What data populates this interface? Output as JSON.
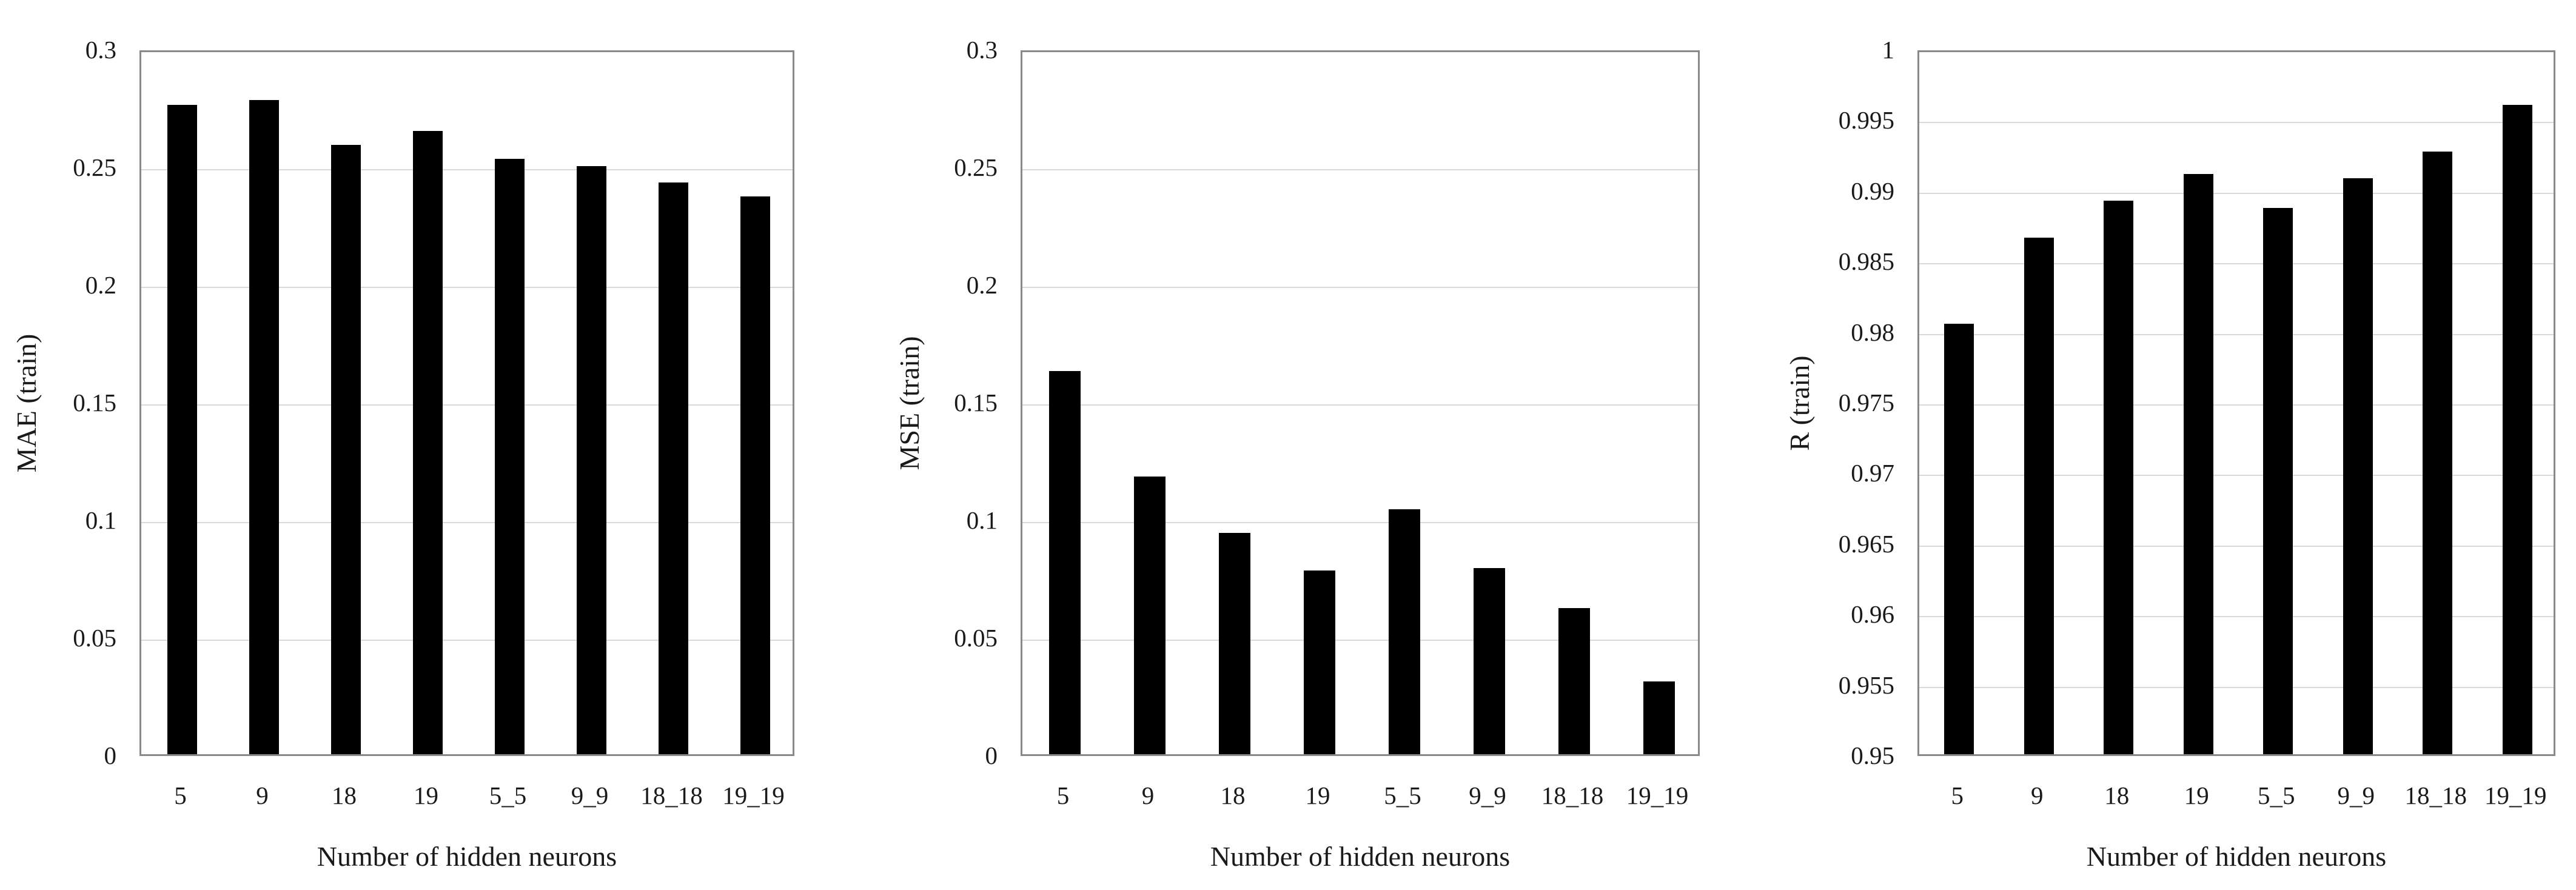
{
  "figure": {
    "background_color": "#ffffff",
    "bar_color": "#000000",
    "grid_color": "#d9d9d9",
    "axis_border_color": "#898989",
    "text_color": "#1a1a1a"
  },
  "chart_data": [
    {
      "type": "bar",
      "title": "",
      "xlabel": "Number of hidden neurons",
      "ylabel": "MAE (train)",
      "categories": [
        "5",
        "9",
        "18",
        "19",
        "5_5",
        "9_9",
        "18_18",
        "19_19"
      ],
      "values": [
        0.276,
        0.278,
        0.259,
        0.265,
        0.253,
        0.25,
        0.243,
        0.237
      ],
      "ylim": [
        0,
        0.3
      ],
      "ytick_step": 0.05,
      "ytick_labels": [
        "0",
        "0.05",
        "0.1",
        "0.15",
        "0.2",
        "0.25",
        "0.3"
      ],
      "grid": true,
      "legend_position": "none"
    },
    {
      "type": "bar",
      "title": "",
      "xlabel": "Number of hidden neurons",
      "ylabel": "MSE (train)",
      "categories": [
        "5",
        "9",
        "18",
        "19",
        "5_5",
        "9_9",
        "18_18",
        "19_19"
      ],
      "values": [
        0.163,
        0.118,
        0.094,
        0.078,
        0.104,
        0.079,
        0.062,
        0.031
      ],
      "ylim": [
        0,
        0.3
      ],
      "ytick_step": 0.05,
      "ytick_labels": [
        "0",
        "0.05",
        "0.1",
        "0.15",
        "0.2",
        "0.25",
        "0.3"
      ],
      "grid": true,
      "legend_position": "none"
    },
    {
      "type": "bar",
      "title": "",
      "xlabel": "Number of hidden neurons",
      "ylabel": "R (train)",
      "categories": [
        "5",
        "9",
        "18",
        "19",
        "5_5",
        "9_9",
        "18_18",
        "19_19"
      ],
      "values": [
        0.9805,
        0.9866,
        0.9892,
        0.9911,
        0.9887,
        0.9908,
        0.9927,
        0.996
      ],
      "ylim": [
        0.95,
        1
      ],
      "ytick_step": 0.005,
      "ytick_labels": [
        "0.95",
        "0.955",
        "0.96",
        "0.965",
        "0.97",
        "0.975",
        "0.98",
        "0.985",
        "0.99",
        "0.995",
        "1"
      ],
      "grid": true,
      "legend_position": "none"
    }
  ]
}
